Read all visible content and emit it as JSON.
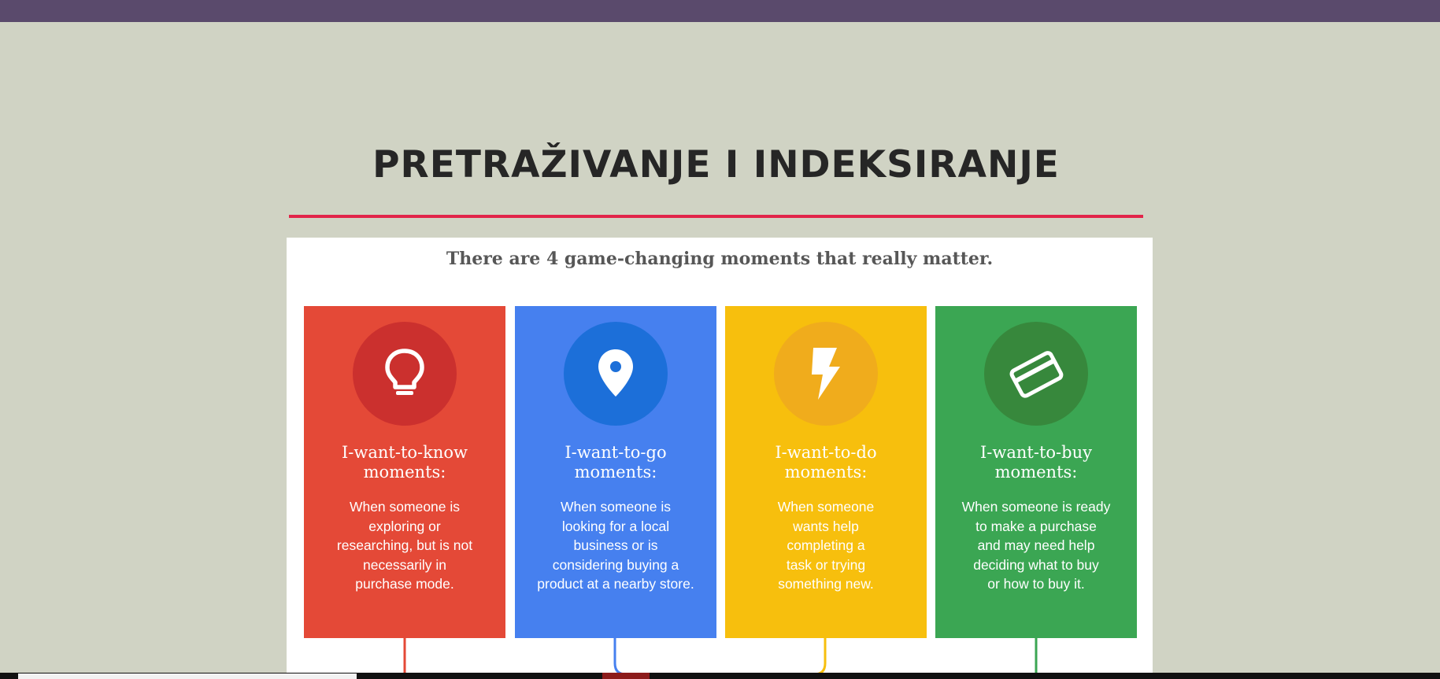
{
  "slide": {
    "title": "PRETRAŽIVANJE I INDEKSIRANJE",
    "accent_color": "#e2254a",
    "background_color": "#d0d3c4",
    "topbar_color": "#5a4a6c"
  },
  "infographic": {
    "heading": "There are 4 game-changing moments that really matter.",
    "cards": [
      {
        "icon": "lightbulb-icon",
        "title_line1": "I-want-to-know",
        "title_line2": "moments:",
        "desc_lines": [
          "When someone is",
          "exploring or",
          "researching, but is not",
          "necessarily in",
          "purchase mode."
        ],
        "color": "#e44937"
      },
      {
        "icon": "map-pin-icon",
        "title_line1": "I-want-to-go",
        "title_line2": "moments:",
        "desc_lines": [
          "When someone is",
          "looking for a local",
          "business or is",
          "considering buying a",
          "product at a nearby store."
        ],
        "color": "#4680ef"
      },
      {
        "icon": "lightning-bolt-icon",
        "title_line1": "I-want-to-do",
        "title_line2": "moments:",
        "desc_lines": [
          "When someone",
          "wants help",
          "completing a",
          "task or trying",
          "something new."
        ],
        "color": "#f7bf0d"
      },
      {
        "icon": "credit-card-icon",
        "title_line1": "I-want-to-buy",
        "title_line2": "moments:",
        "desc_lines": [
          "When someone is ready",
          "to make a purchase",
          "and may need help",
          "deciding what to buy",
          "or how to buy it."
        ],
        "color": "#3ba653"
      }
    ]
  }
}
